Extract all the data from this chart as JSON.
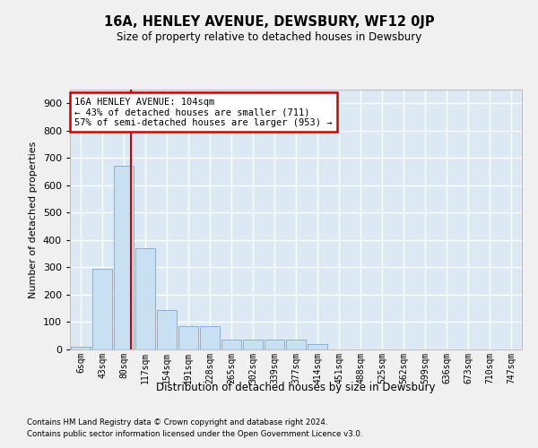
{
  "title": "16A, HENLEY AVENUE, DEWSBURY, WF12 0JP",
  "subtitle": "Size of property relative to detached houses in Dewsbury",
  "xlabel": "Distribution of detached houses by size in Dewsbury",
  "ylabel": "Number of detached properties",
  "bar_color": "#c9dff2",
  "bar_edge_color": "#7aaad4",
  "bg_color": "#dce9f5",
  "grid_color": "#ffffff",
  "bins": [
    "6sqm",
    "43sqm",
    "80sqm",
    "117sqm",
    "154sqm",
    "191sqm",
    "228sqm",
    "265sqm",
    "302sqm",
    "339sqm",
    "377sqm",
    "414sqm",
    "451sqm",
    "488sqm",
    "525sqm",
    "562sqm",
    "599sqm",
    "636sqm",
    "673sqm",
    "710sqm",
    "747sqm"
  ],
  "bar_heights": [
    10,
    295,
    670,
    370,
    145,
    85,
    85,
    35,
    35,
    35,
    35,
    20,
    0,
    0,
    0,
    0,
    0,
    0,
    0,
    0,
    0
  ],
  "ylim": [
    0,
    950
  ],
  "yticks": [
    0,
    100,
    200,
    300,
    400,
    500,
    600,
    700,
    800,
    900
  ],
  "red_line_color": "#cc0000",
  "red_line_x": 2.35,
  "annotation_text": "16A HENLEY AVENUE: 104sqm\n← 43% of detached houses are smaller (711)\n57% of semi-detached houses are larger (953) →",
  "annotation_box_color": "#ffffff",
  "annotation_border_color": "#cc0000",
  "footnote1": "Contains HM Land Registry data © Crown copyright and database right 2024.",
  "footnote2": "Contains public sector information licensed under the Open Government Licence v3.0.",
  "fig_width": 6.0,
  "fig_height": 5.0,
  "fig_dpi": 100
}
